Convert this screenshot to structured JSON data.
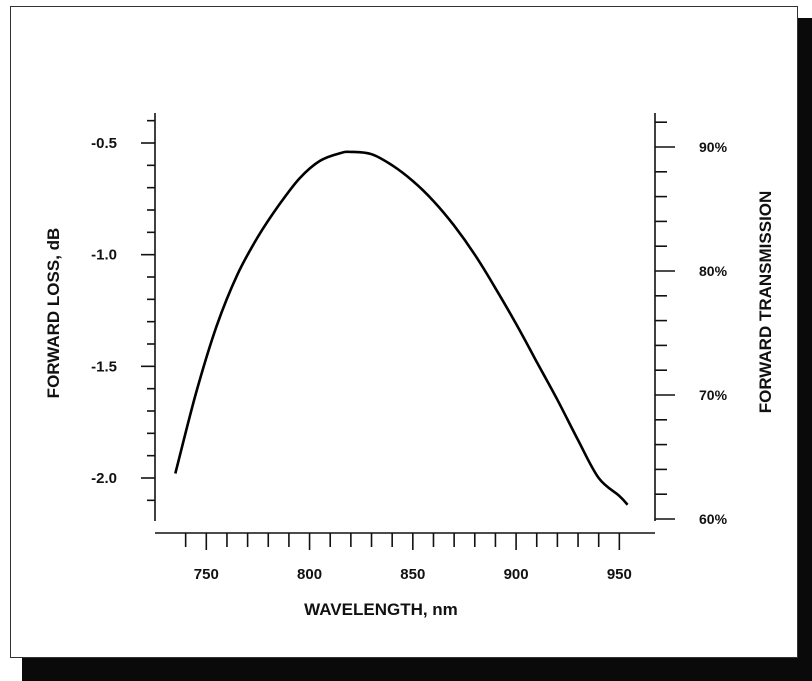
{
  "chart_data": {
    "type": "line",
    "title": "",
    "xlabel": "WAVELENGTH, nm",
    "ylabel": "FORWARD LOSS, dB",
    "y2label": "FORWARD TRANSMISSION",
    "xlim": [
      730,
      960
    ],
    "ylim": [
      -2.2,
      -0.38
    ],
    "y2lim": [
      60,
      90
    ],
    "x_ticks": [
      750,
      800,
      850,
      900,
      950
    ],
    "x_tick_labels": [
      "750",
      "800",
      "850",
      "900",
      "950"
    ],
    "y_ticks": [
      -0.5,
      -1.0,
      -1.5,
      -2.0
    ],
    "y_tick_labels": [
      "-0.5",
      "-1.0",
      "-1.5",
      "-2.0"
    ],
    "y2_ticks": [
      90,
      80,
      70,
      60
    ],
    "y2_tick_labels": [
      "90%",
      "80%",
      "70%",
      "60%"
    ],
    "grid": false,
    "legend": "none",
    "line_color": "#000000",
    "series": [
      {
        "x": [
          735,
          745,
          755,
          765,
          775,
          785,
          795,
          805,
          815,
          820,
          830,
          840,
          850,
          860,
          870,
          880,
          890,
          900,
          910,
          920,
          930,
          940,
          950,
          954
        ],
        "values": [
          -1.98,
          -1.62,
          -1.32,
          -1.09,
          -0.92,
          -0.78,
          -0.66,
          -0.58,
          -0.545,
          -0.54,
          -0.55,
          -0.6,
          -0.67,
          -0.76,
          -0.87,
          -1.0,
          -1.15,
          -1.31,
          -1.48,
          -1.65,
          -1.83,
          -2.0,
          -2.08,
          -2.12
        ]
      }
    ]
  }
}
